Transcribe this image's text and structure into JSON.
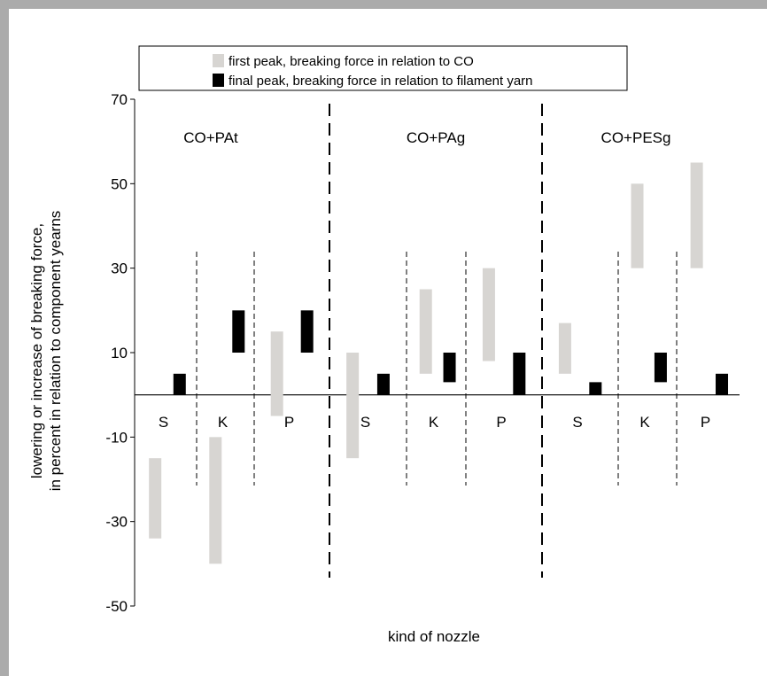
{
  "chart_data": {
    "type": "bar",
    "subtype": "floating-range",
    "xlabel": "kind of nozzle",
    "ylabel_lines": [
      "lowering or increase of breaking force,",
      "in percent in relation to component yearns"
    ],
    "ylim": [
      -50,
      70
    ],
    "yticks": [
      70,
      50,
      30,
      10,
      -10,
      -30,
      -50
    ],
    "grid": false,
    "legend_position": "top",
    "series": [
      {
        "name": "first peak, breaking force in relation to CO",
        "color": "#d7d5d2"
      },
      {
        "name": "final peak, breaking force in relation to filament yarn",
        "color": "#000000"
      }
    ],
    "groups": [
      {
        "name": "CO+PAt",
        "nozzles": [
          {
            "label": "S",
            "first_peak": [
              -34,
              -15
            ],
            "final_peak": [
              0,
              5
            ]
          },
          {
            "label": "K",
            "first_peak": [
              -40,
              -10
            ],
            "final_peak": [
              10,
              20
            ]
          },
          {
            "label": "P",
            "first_peak": [
              -5,
              15
            ],
            "final_peak": [
              10,
              20
            ]
          }
        ]
      },
      {
        "name": "CO+PAg",
        "nozzles": [
          {
            "label": "S",
            "first_peak": [
              -15,
              10
            ],
            "final_peak": [
              0,
              5
            ]
          },
          {
            "label": "K",
            "first_peak": [
              5,
              25
            ],
            "final_peak": [
              3,
              10
            ]
          },
          {
            "label": "P",
            "first_peak": [
              8,
              30
            ],
            "final_peak": [
              0,
              10
            ]
          }
        ]
      },
      {
        "name": "CO+PESg",
        "nozzles": [
          {
            "label": "S",
            "first_peak": [
              5,
              17
            ],
            "final_peak": [
              0,
              3
            ]
          },
          {
            "label": "K",
            "first_peak": [
              30,
              50
            ],
            "final_peak": [
              3,
              10
            ]
          },
          {
            "label": "P",
            "first_peak": [
              30,
              55
            ],
            "final_peak": [
              0,
              5
            ]
          }
        ]
      }
    ]
  }
}
